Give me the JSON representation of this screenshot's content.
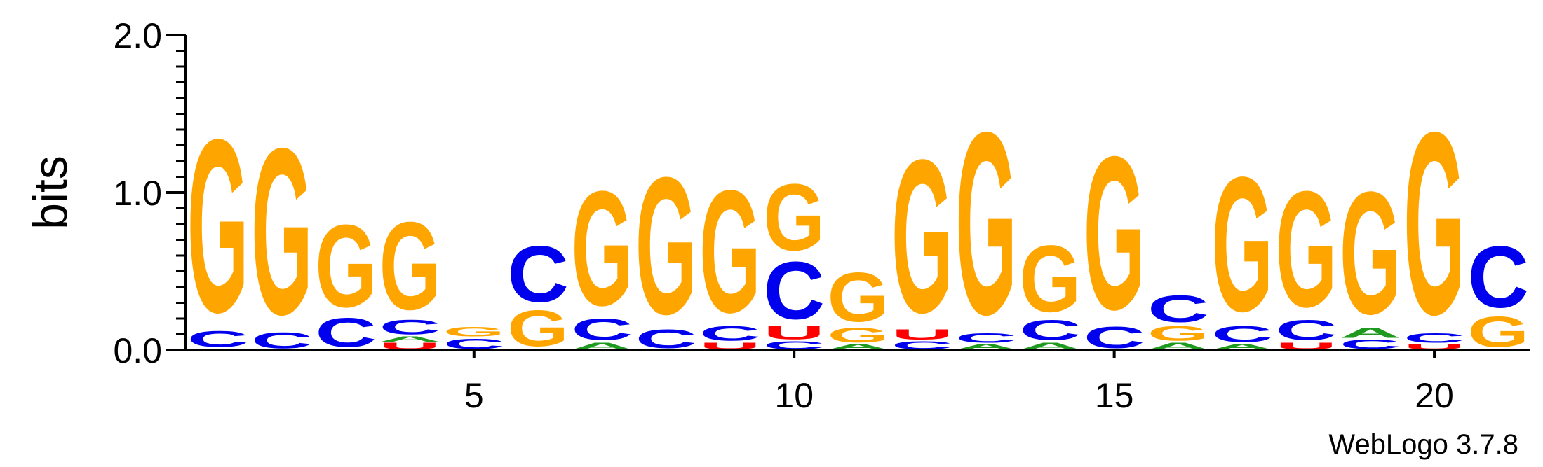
{
  "chart_data": {
    "type": "sequence-logo",
    "title": "",
    "xlabel": "",
    "ylabel": "bits",
    "ylim": [
      0,
      2.0
    ],
    "y_ticks": [
      "0.0",
      "1.0",
      "2.0"
    ],
    "x_ticks": [
      {
        "value": 5,
        "label": "5"
      },
      {
        "value": 10,
        "label": "10"
      },
      {
        "value": 15,
        "label": "15"
      },
      {
        "value": 20,
        "label": "20"
      }
    ],
    "x_range": [
      0.5,
      21.5
    ],
    "colors": {
      "A": "#1f9a1f",
      "C": "#0000ee",
      "G": "#ffa500",
      "U": "#ff0000"
    },
    "positions": [
      {
        "pos": 1,
        "stack": [
          {
            "l": "U",
            "h": 0.01
          },
          {
            "l": "C",
            "h": 0.12
          },
          {
            "l": "G",
            "h": 1.3
          }
        ]
      },
      {
        "pos": 2,
        "stack": [
          {
            "l": "C",
            "h": 0.12
          },
          {
            "l": "G",
            "h": 1.25
          }
        ]
      },
      {
        "pos": 3,
        "stack": [
          {
            "l": "C",
            "h": 0.22
          },
          {
            "l": "G",
            "h": 0.62
          }
        ]
      },
      {
        "pos": 4,
        "stack": [
          {
            "l": "U",
            "h": 0.05
          },
          {
            "l": "A",
            "h": 0.04
          },
          {
            "l": "C",
            "h": 0.11
          },
          {
            "l": "G",
            "h": 0.66
          }
        ]
      },
      {
        "pos": 5,
        "stack": [
          {
            "l": "C",
            "h": 0.08
          },
          {
            "l": "G",
            "h": 0.07
          }
        ]
      },
      {
        "pos": 6,
        "stack": [
          {
            "l": "G",
            "h": 0.27
          },
          {
            "l": "C",
            "h": 0.42
          }
        ]
      },
      {
        "pos": 7,
        "stack": [
          {
            "l": "A",
            "h": 0.05
          },
          {
            "l": "C",
            "h": 0.16
          },
          {
            "l": "G",
            "h": 0.86
          }
        ]
      },
      {
        "pos": 8,
        "stack": [
          {
            "l": "C",
            "h": 0.14
          },
          {
            "l": "G",
            "h": 1.03
          }
        ]
      },
      {
        "pos": 9,
        "stack": [
          {
            "l": "U",
            "h": 0.05
          },
          {
            "l": "C",
            "h": 0.11
          },
          {
            "l": "G",
            "h": 0.92
          }
        ]
      },
      {
        "pos": 10,
        "stack": [
          {
            "l": "C",
            "h": 0.06
          },
          {
            "l": "U",
            "h": 0.1
          },
          {
            "l": "C",
            "h": 0.43
          },
          {
            "l": "G",
            "h": 0.5
          }
        ]
      },
      {
        "pos": 11,
        "stack": [
          {
            "l": "A",
            "h": 0.04
          },
          {
            "l": "G",
            "h": 0.11
          },
          {
            "l": "G",
            "h": 0.37
          }
        ]
      },
      {
        "pos": 12,
        "stack": [
          {
            "l": "C",
            "h": 0.06
          },
          {
            "l": "U",
            "h": 0.08
          },
          {
            "l": "G",
            "h": 1.15
          }
        ]
      },
      {
        "pos": 13,
        "stack": [
          {
            "l": "A",
            "h": 0.04
          },
          {
            "l": "C",
            "h": 0.07
          },
          {
            "l": "G",
            "h": 1.37
          }
        ]
      },
      {
        "pos": 14,
        "stack": [
          {
            "l": "A",
            "h": 0.05
          },
          {
            "l": "C",
            "h": 0.15
          },
          {
            "l": "G",
            "h": 0.5
          }
        ]
      },
      {
        "pos": 15,
        "stack": [
          {
            "l": "C",
            "h": 0.16
          },
          {
            "l": "G",
            "h": 1.15
          }
        ]
      },
      {
        "pos": 16,
        "stack": [
          {
            "l": "A",
            "h": 0.05
          },
          {
            "l": "G",
            "h": 0.11
          },
          {
            "l": "C",
            "h": 0.2
          }
        ]
      },
      {
        "pos": 17,
        "stack": [
          {
            "l": "A",
            "h": 0.04
          },
          {
            "l": "C",
            "h": 0.12
          },
          {
            "l": "G",
            "h": 1.01
          }
        ]
      },
      {
        "pos": 18,
        "stack": [
          {
            "l": "U",
            "h": 0.05
          },
          {
            "l": "C",
            "h": 0.15
          },
          {
            "l": "G",
            "h": 0.87
          }
        ]
      },
      {
        "pos": 19,
        "stack": [
          {
            "l": "C",
            "h": 0.07
          },
          {
            "l": "A",
            "h": 0.08
          },
          {
            "l": "G",
            "h": 0.92
          }
        ]
      },
      {
        "pos": 20,
        "stack": [
          {
            "l": "U",
            "h": 0.04
          },
          {
            "l": "C",
            "h": 0.07
          },
          {
            "l": "G",
            "h": 1.37
          }
        ]
      },
      {
        "pos": 21,
        "stack": [
          {
            "l": "G",
            "h": 0.23
          },
          {
            "l": "C",
            "h": 0.46
          }
        ]
      }
    ]
  },
  "footer": {
    "credit": "WebLogo 3.7.8"
  }
}
